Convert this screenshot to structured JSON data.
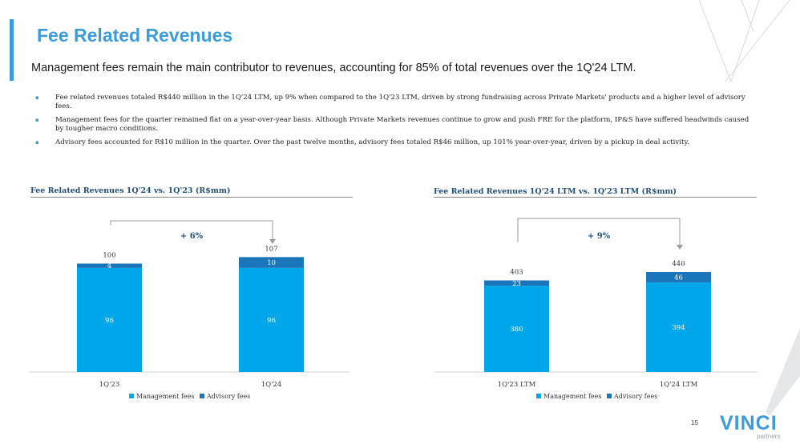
{
  "header": {
    "title": "Fee Related Revenues",
    "subtitle": "Management fees remain the main contributor to revenues, accounting for 85% of total revenues over the 1Q'24 LTM."
  },
  "bullets": [
    "Fee related revenues totaled R$440 million in the 1Q'24 LTM, up 9% when compared to the 1Q'23 LTM, driven by strong fundraising across Private Markets' products and a higher level of advisory fees.",
    "Management fees for the quarter remained flat on a year-over-year basis. Although Private Markets revenues continue to grow and push FRE for the platform, IP&S have suffered headwinds caused by tougher macro conditions.",
    "Advisory fees accounted for R$10 million in the quarter. Over the past twelve months, advisory fees totaled R$46 million, up 101% year-over-year, driven by a pickup in deal activity."
  ],
  "bullet_marker": "▪",
  "colors": {
    "management": "#00a6ea",
    "advisory": "#1b75ba",
    "title": "#3d9bd9",
    "chart_title": "#1f4e79"
  },
  "chart_data": [
    {
      "type": "bar",
      "stacked": true,
      "title": "Fee Related Revenues 1Q'24 vs. 1Q'23 (R$mm)",
      "categories": [
        "1Q'23",
        "1Q'24"
      ],
      "series": [
        {
          "name": "Management fees",
          "values": [
            96,
            96
          ]
        },
        {
          "name": "Advisory fees",
          "values": [
            4,
            10
          ]
        }
      ],
      "totals": [
        100,
        107
      ],
      "growth_label": "+ 6%",
      "legend_position": "bottom"
    },
    {
      "type": "bar",
      "stacked": true,
      "title": "Fee Related Revenues 1Q'24 LTM vs. 1Q'23 LTM (R$mm)",
      "categories": [
        "1Q'23 LTM",
        "1Q'24 LTM"
      ],
      "series": [
        {
          "name": "Management fees",
          "values": [
            380,
            394
          ]
        },
        {
          "name": "Advisory fees",
          "values": [
            23,
            46
          ]
        }
      ],
      "totals": [
        403,
        440
      ],
      "growth_label": "+ 9%",
      "legend_position": "bottom"
    }
  ],
  "footer": {
    "page_number": "15",
    "logo_text": "VINCI",
    "logo_sub": "partners"
  }
}
